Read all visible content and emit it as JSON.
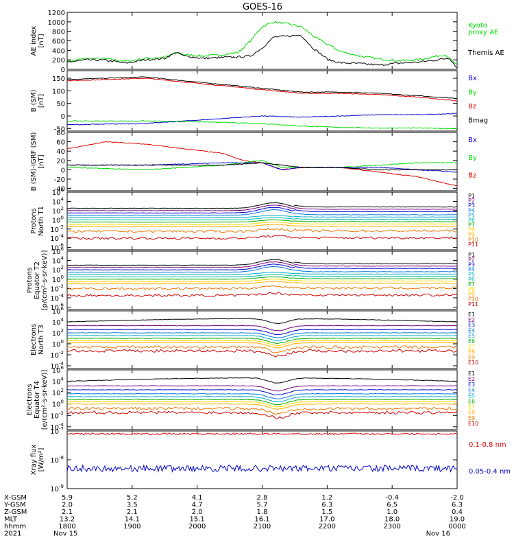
{
  "title": "GOES-16",
  "colors": {
    "black": "#000000",
    "red": "#dd0000",
    "green": "#00dd00",
    "blue": "#0000cc",
    "p_palette": [
      "#000000",
      "#7a007a",
      "#0000cc",
      "#0077dd",
      "#00aacc",
      "#00bbaa",
      "#00aa00",
      "#ffd700",
      "#ffb000",
      "#ee7700",
      "#cc0000"
    ]
  },
  "chart_data": [
    {
      "type": "line",
      "panel": "ae",
      "ylabel": "AE index\n[nT]",
      "yticks": [
        "0",
        "200",
        "400",
        "600",
        "800",
        "1000",
        "1200"
      ],
      "ylim": [
        0,
        1200
      ],
      "series": [
        {
          "name": "Kyoto proxy AE",
          "color": "#00dd00",
          "points": [
            [
              0,
              170
            ],
            [
              0.05,
              230
            ],
            [
              0.1,
              220
            ],
            [
              0.15,
              170
            ],
            [
              0.2,
              230
            ],
            [
              0.25,
              250
            ],
            [
              0.28,
              350
            ],
            [
              0.3,
              310
            ],
            [
              0.35,
              280
            ],
            [
              0.4,
              310
            ],
            [
              0.44,
              360
            ],
            [
              0.47,
              600
            ],
            [
              0.5,
              900
            ],
            [
              0.53,
              1000
            ],
            [
              0.57,
              950
            ],
            [
              0.6,
              900
            ],
            [
              0.64,
              650
            ],
            [
              0.67,
              520
            ],
            [
              0.7,
              380
            ],
            [
              0.75,
              280
            ],
            [
              0.8,
              220
            ],
            [
              0.85,
              180
            ],
            [
              0.9,
              200
            ],
            [
              0.95,
              280
            ],
            [
              0.97,
              310
            ],
            [
              1,
              80
            ]
          ]
        },
        {
          "name": "Themis AE",
          "color": "#000000",
          "points": [
            [
              0,
              150
            ],
            [
              0.05,
              200
            ],
            [
              0.1,
              190
            ],
            [
              0.15,
              130
            ],
            [
              0.2,
              200
            ],
            [
              0.25,
              230
            ],
            [
              0.28,
              360
            ],
            [
              0.3,
              280
            ],
            [
              0.35,
              230
            ],
            [
              0.4,
              250
            ],
            [
              0.44,
              260
            ],
            [
              0.47,
              280
            ],
            [
              0.5,
              450
            ],
            [
              0.53,
              680
            ],
            [
              0.57,
              700
            ],
            [
              0.6,
              720
            ],
            [
              0.63,
              450
            ],
            [
              0.67,
              200
            ],
            [
              0.7,
              140
            ],
            [
              0.75,
              120
            ],
            [
              0.8,
              90
            ],
            [
              0.85,
              130
            ],
            [
              0.9,
              150
            ],
            [
              0.95,
              200
            ],
            [
              0.98,
              240
            ],
            [
              1,
              30
            ]
          ]
        }
      ],
      "legend": [
        {
          "text": "Kyoto",
          "color": "#00dd00"
        },
        {
          "text": "proxy AE",
          "color": "#00dd00"
        },
        {
          "text": "Themis AE",
          "color": "#000000"
        }
      ]
    },
    {
      "type": "line",
      "panel": "bsm",
      "ylabel": "B (SM)\n[nT]",
      "yticks": [
        "-50",
        "0",
        "50",
        "100",
        "150"
      ],
      "ylim": [
        -60,
        180
      ],
      "series": [
        {
          "name": "Bmag",
          "color": "#000000",
          "points": [
            [
              0,
              145
            ],
            [
              0.2,
              155
            ],
            [
              0.4,
              125
            ],
            [
              0.5,
              110
            ],
            [
              0.6,
              95
            ],
            [
              0.7,
              95
            ],
            [
              0.8,
              90
            ],
            [
              0.9,
              80
            ],
            [
              1,
              70
            ]
          ]
        },
        {
          "name": "Bz",
          "color": "#dd0000",
          "points": [
            [
              0,
              140
            ],
            [
              0.2,
              150
            ],
            [
              0.4,
              120
            ],
            [
              0.5,
              105
            ],
            [
              0.6,
              90
            ],
            [
              0.7,
              90
            ],
            [
              0.8,
              85
            ],
            [
              0.9,
              75
            ],
            [
              1,
              60
            ]
          ]
        },
        {
          "name": "Bx",
          "color": "#0000cc",
          "points": [
            [
              0,
              -35
            ],
            [
              0.2,
              -30
            ],
            [
              0.4,
              -10
            ],
            [
              0.5,
              0
            ],
            [
              0.6,
              -5
            ],
            [
              0.7,
              0
            ],
            [
              0.8,
              5
            ],
            [
              0.9,
              5
            ],
            [
              1,
              10
            ]
          ]
        },
        {
          "name": "By",
          "color": "#00dd00",
          "points": [
            [
              0,
              -20
            ],
            [
              0.2,
              -20
            ],
            [
              0.4,
              -25
            ],
            [
              0.5,
              -30
            ],
            [
              0.6,
              -40
            ],
            [
              0.7,
              -45
            ],
            [
              0.8,
              -48
            ],
            [
              0.9,
              -48
            ],
            [
              1,
              -50
            ]
          ]
        }
      ],
      "legend": [
        {
          "text": "Bx",
          "color": "#0000cc"
        },
        {
          "text": "By",
          "color": "#00dd00"
        },
        {
          "text": "Bz",
          "color": "#dd0000"
        },
        {
          "text": "Bmag",
          "color": "#000000"
        }
      ]
    },
    {
      "type": "line",
      "panel": "bigrf",
      "ylabel": "B (SM)-IGRF (SM)\n[nT]",
      "yticks": [
        "-40",
        "-20",
        "0",
        "20",
        "40",
        "60",
        "80"
      ],
      "ylim": [
        -45,
        80
      ],
      "series": [
        {
          "name": "Bz",
          "color": "#dd0000",
          "points": [
            [
              0,
              45
            ],
            [
              0.1,
              60
            ],
            [
              0.2,
              55
            ],
            [
              0.3,
              45
            ],
            [
              0.4,
              35
            ],
            [
              0.45,
              20
            ],
            [
              0.5,
              15
            ],
            [
              0.55,
              0
            ],
            [
              0.6,
              5
            ],
            [
              0.7,
              5
            ],
            [
              0.8,
              -5
            ],
            [
              0.9,
              -15
            ],
            [
              1,
              -35
            ]
          ]
        },
        {
          "name": "By",
          "color": "#00dd00",
          "points": [
            [
              0,
              5
            ],
            [
              0.2,
              0
            ],
            [
              0.4,
              10
            ],
            [
              0.5,
              20
            ],
            [
              0.55,
              5
            ],
            [
              0.6,
              5
            ],
            [
              0.7,
              5
            ],
            [
              0.8,
              10
            ],
            [
              0.9,
              15
            ],
            [
              1,
              15
            ]
          ]
        },
        {
          "name": "Bx",
          "color": "#0000cc",
          "points": [
            [
              0,
              10
            ],
            [
              0.2,
              10
            ],
            [
              0.4,
              15
            ],
            [
              0.5,
              15
            ],
            [
              0.55,
              0
            ],
            [
              0.6,
              5
            ],
            [
              0.7,
              5
            ],
            [
              0.8,
              5
            ],
            [
              0.9,
              0
            ],
            [
              1,
              -5
            ]
          ]
        },
        {
          "name": "Bmag",
          "color": "#000000",
          "points": [
            [
              0,
              10
            ],
            [
              0.2,
              10
            ],
            [
              0.4,
              10
            ],
            [
              0.5,
              15
            ],
            [
              0.6,
              5
            ],
            [
              0.7,
              5
            ],
            [
              0.8,
              0
            ],
            [
              0.9,
              0
            ],
            [
              1,
              0
            ]
          ]
        }
      ],
      "legend": [
        {
          "text": "Bx",
          "color": "#0000cc"
        },
        {
          "text": "By",
          "color": "#00dd00"
        },
        {
          "text": "Bz",
          "color": "#dd0000"
        }
      ]
    },
    {
      "type": "line",
      "panel": "pn",
      "ylabel": "Protons\nNorth T1",
      "yticks": [
        "10^-6",
        "10^-4",
        "10^-2",
        "10^0",
        "10^2",
        "10^4",
        "10^6"
      ],
      "ylim": [
        -6.5,
        6
      ],
      "series_levels": [
        2.5,
        2.0,
        1.5,
        1.0,
        0.5,
        0.0,
        -0.5,
        -1.0,
        -1.5,
        -2.5,
        -4.0
      ],
      "legend": [
        "P1",
        "P2",
        "P3",
        "P4",
        "P5",
        "P6",
        "P7",
        "P8",
        "P9",
        "P10",
        "P11"
      ]
    },
    {
      "type": "line",
      "panel": "pe",
      "ylabel": "Protons\nEquator T2\n[p/(cm^2-s-sr-keV)]",
      "yticks": [
        "10^-6",
        "10^-4",
        "10^-2",
        "10^0",
        "10^2",
        "10^4",
        "10^6"
      ],
      "ylim": [
        -6.5,
        6
      ],
      "series_levels": [
        3.0,
        2.5,
        2.0,
        1.5,
        1.0,
        0.5,
        0.0,
        -0.5,
        -1.0,
        -2.0,
        -3.5
      ],
      "legend": [
        "P1",
        "P2",
        "P3",
        "P4",
        "P5",
        "P6",
        "P7",
        "P8",
        "P9",
        "P10",
        "P11"
      ]
    },
    {
      "type": "line",
      "panel": "en",
      "ylabel": "Electrons\nNorth T3",
      "yticks": [
        "10^-4",
        "10^-2",
        "10^0",
        "10^2",
        "10^4",
        "10^6"
      ],
      "ylim": [
        -4.5,
        6
      ],
      "series_levels": [
        4.0,
        3.3,
        2.6,
        2.0,
        1.5,
        1.0,
        0.6,
        0.2,
        -0.6,
        -1.3
      ],
      "legend": [
        "E1",
        "E2",
        "E3",
        "E4",
        "E5",
        "E6",
        "E7",
        "E8",
        "E9",
        "E10"
      ]
    },
    {
      "type": "line",
      "panel": "ee",
      "ylabel": "Electrons\nEquator T4\n[e/(cm^2-s-sr-keV)]",
      "yticks": [
        "10^-4",
        "10^-2",
        "10^0",
        "10^2",
        "10^4",
        "10^6"
      ],
      "ylim": [
        -4.5,
        6
      ],
      "series_levels": [
        4.0,
        3.2,
        2.5,
        1.8,
        1.3,
        0.8,
        0.4,
        0.0,
        -0.8,
        -1.5
      ],
      "legend": [
        "E1",
        "E2",
        "E3",
        "E4",
        "E5",
        "E6",
        "E7",
        "E8",
        "E9",
        "E10"
      ]
    },
    {
      "type": "line",
      "panel": "xray",
      "ylabel": "Xray flux\n[W/m^2]",
      "yticks": [
        "10^-9",
        "10^-8",
        "10^-7"
      ],
      "ylim": [
        -9,
        -7
      ],
      "series": [
        {
          "name": "0.1-0.8 nm",
          "color": "#dd0000",
          "level": -7.1
        },
        {
          "name": "0.05-0.4 nm",
          "color": "#0000cc",
          "level": -8.3
        }
      ],
      "legend": [
        {
          "text": "0.1-0.8 nm",
          "color": "#dd0000"
        },
        {
          "text": "0.05-0.4 nm",
          "color": "#0000cc"
        }
      ]
    }
  ],
  "xaxis": {
    "row_labels": [
      "X-GSM",
      "Y-GSM",
      "Z-GSM",
      "MLT",
      "hhmm",
      "2021"
    ],
    "columns": [
      [
        "5.9",
        "2.0",
        "2.1",
        "13.2",
        "1800",
        "Nov 15"
      ],
      [
        "5.2",
        "3.5",
        "2.1",
        "14.1",
        "1900",
        ""
      ],
      [
        "4.1",
        "4.7",
        "2.0",
        "15.1",
        "2000",
        ""
      ],
      [
        "2.8",
        "5.7",
        "1.8",
        "16.1",
        "2100",
        ""
      ],
      [
        "1.2",
        "6.3",
        "1.5",
        "17.0",
        "2200",
        ""
      ],
      [
        "-0.4",
        "6.5",
        "1.0",
        "18.0",
        "2300",
        ""
      ],
      [
        "-2.0",
        "6.3",
        "0.4",
        "19.0",
        "0000",
        "Nov 16"
      ]
    ]
  }
}
